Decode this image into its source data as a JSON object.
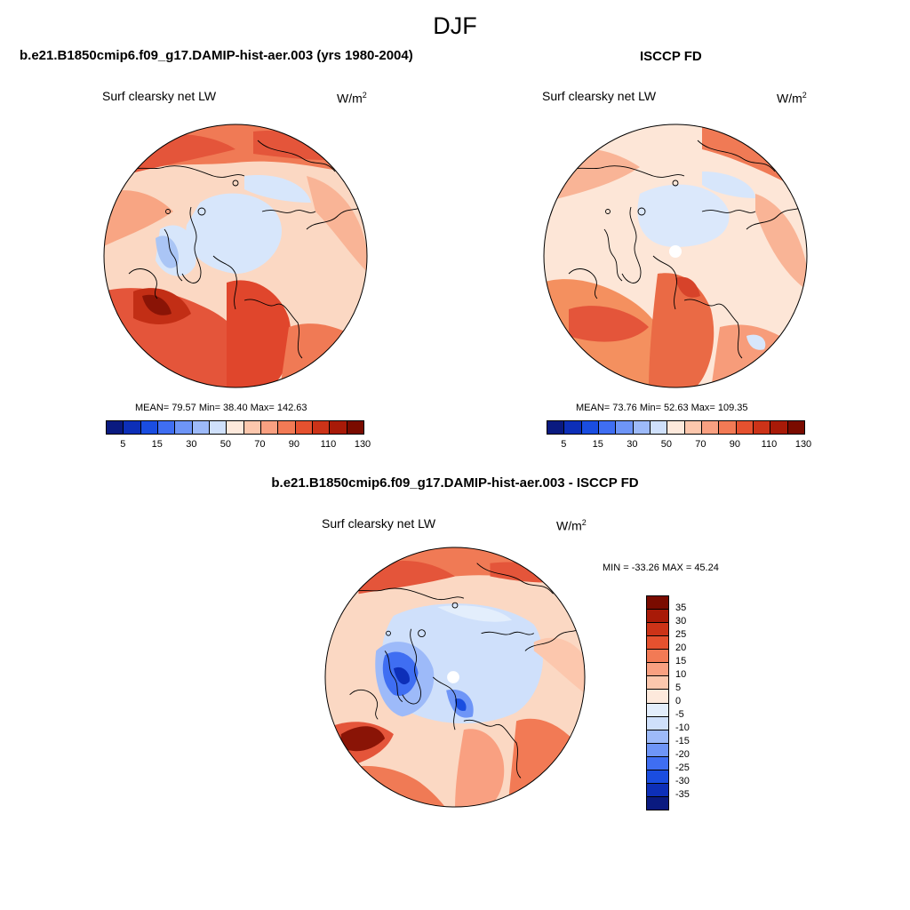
{
  "main_title": "DJF",
  "panels": [
    {
      "title": "b.e21.B1850cmip6.f09_g17.DAMIP-hist-aer.003 (yrs 1980-2004)",
      "variable": "Surf clearsky net LW",
      "units": "W/m",
      "units_sup": "2",
      "stats_label": "MEAN=  79.57  Min=  38.40  Max= 142.63",
      "stats": {
        "mean": 79.57,
        "min": 38.4,
        "max": 142.63
      }
    },
    {
      "title": "ISCCP FD",
      "variable": "Surf clearsky net LW",
      "units": "W/m",
      "units_sup": "2",
      "stats_label": "MEAN=  73.76  Min=  52.63  Max= 109.35",
      "stats": {
        "mean": 73.76,
        "min": 52.63,
        "max": 109.35
      }
    },
    {
      "title": "b.e21.B1850cmip6.f09_g17.DAMIP-hist-aer.003 - ISCCP FD",
      "variable": "Surf clearsky net LW",
      "units": "W/m",
      "units_sup": "2",
      "stats_label": "MIN = -33.26 MAX =  45.24",
      "stats": {
        "min": -33.26,
        "max": 45.24
      }
    }
  ],
  "colorbar_main": {
    "tick_labels": [
      "5",
      "15",
      "30",
      "50",
      "70",
      "90",
      "110",
      "130"
    ],
    "colors": [
      "#0a1a80",
      "#0d2fb8",
      "#1a4de0",
      "#3f6ef2",
      "#6e95f7",
      "#9dbaf9",
      "#cfe0fb",
      "#fde9dc",
      "#fcc7ad",
      "#f9a081",
      "#f27a55",
      "#e5512f",
      "#cc3318",
      "#a81a08",
      "#7a0b00"
    ]
  },
  "colorbar_diff": {
    "tick_labels": [
      "35",
      "30",
      "25",
      "20",
      "15",
      "10",
      "5",
      "0",
      "-5",
      "-10",
      "-15",
      "-20",
      "-25",
      "-30",
      "-35"
    ],
    "colors": [
      "#7a0b00",
      "#a81a08",
      "#cc3318",
      "#e5512f",
      "#f27a55",
      "#f9a081",
      "#fcc7ad",
      "#fde9dc",
      "#e3eefc",
      "#cfe0fb",
      "#9dbaf9",
      "#6e95f7",
      "#3f6ef2",
      "#1a4de0",
      "#0d2fb8",
      "#0a1a80"
    ]
  }
}
